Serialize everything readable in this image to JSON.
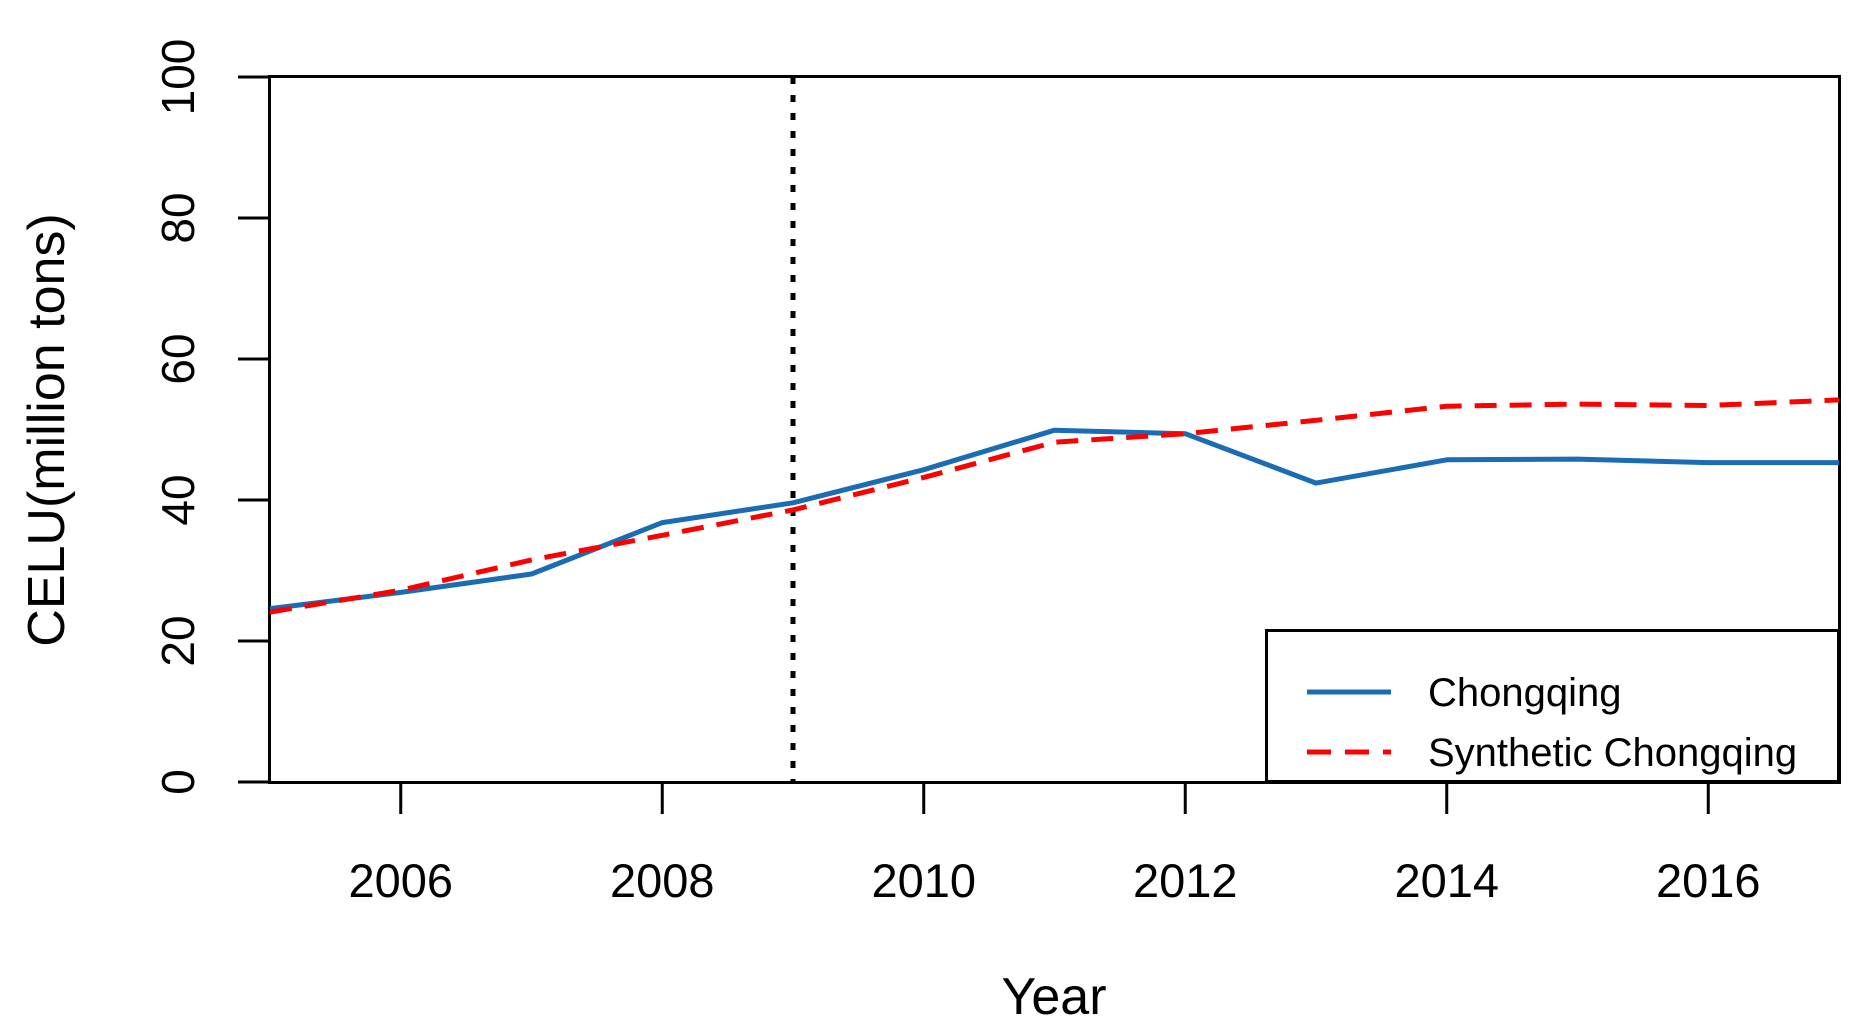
{
  "figure": {
    "background": "#FFFFFF",
    "axis_color": "#000000",
    "text_color": "#000000"
  },
  "chart_data": {
    "type": "line",
    "title": "",
    "xlabel": "Year",
    "ylabel": "CELU(million tons)",
    "x": [
      2005,
      2006,
      2007,
      2008,
      2009,
      2010,
      2011,
      2012,
      2013,
      2014,
      2015,
      2016,
      2017
    ],
    "xlim": [
      2005,
      2017
    ],
    "ylim": [
      0,
      100
    ],
    "xticks": [
      2006,
      2008,
      2010,
      2012,
      2014,
      2016
    ],
    "yticks": [
      0,
      20,
      40,
      60,
      80,
      100
    ],
    "grid": false,
    "series": [
      {
        "name": "Chongqing",
        "color": "#1A6CB5",
        "line_style": "solid",
        "values": [
          24.6,
          26.9,
          29.5,
          36.8,
          39.6,
          44.3,
          49.9,
          49.4,
          42.4,
          45.7,
          45.8,
          45.3,
          45.3
        ]
      },
      {
        "name": "Synthetic Chongqing",
        "color": "#FF0000",
        "line_style": "dashed",
        "values": [
          24.1,
          27.2,
          31.5,
          35.0,
          38.6,
          43.2,
          48.2,
          49.4,
          51.3,
          53.3,
          53.6,
          53.4,
          54.2
        ]
      }
    ],
    "annotations": [
      {
        "type": "vline",
        "x": 2009,
        "line_style": "dotted",
        "color": "#000000"
      }
    ],
    "legend": {
      "position": "bottom-right-inside",
      "entries": [
        "Chongqing",
        "Synthetic Chongqing"
      ]
    }
  }
}
